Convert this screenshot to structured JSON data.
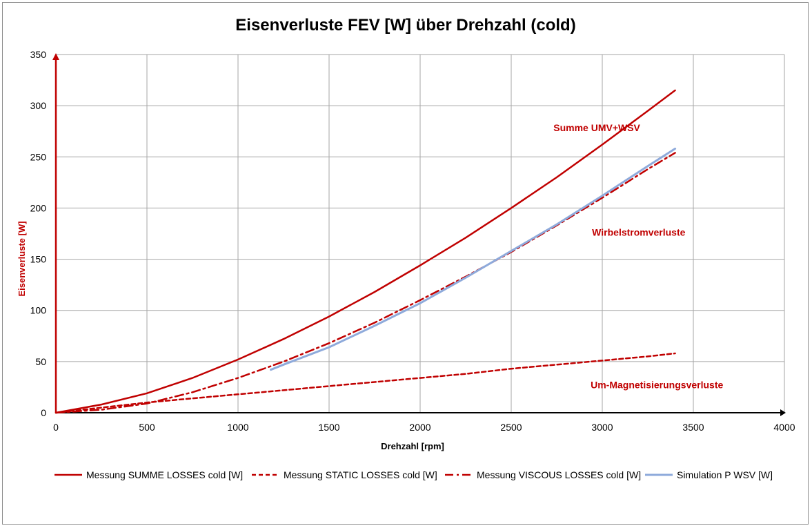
{
  "chart_data": {
    "type": "line",
    "title": "Eisenverluste FEV [W] über Drehzahl (cold)",
    "xlabel": "Drehzahl [rpm]",
    "ylabel": "Eisenverluste [W]",
    "xlim": [
      0,
      4000
    ],
    "ylim": [
      0,
      350
    ],
    "xticks": [
      0,
      500,
      1000,
      1500,
      2000,
      2500,
      3000,
      3500,
      4000
    ],
    "yticks": [
      0,
      50,
      100,
      150,
      200,
      250,
      300,
      350
    ],
    "grid": true,
    "legend_position": "bottom",
    "series": [
      {
        "name": "Messung SUMME LOSSES cold [W]",
        "style": "solid",
        "color": "#c00000",
        "x": [
          0,
          250,
          500,
          750,
          1000,
          1250,
          1500,
          1750,
          2000,
          2250,
          2500,
          2750,
          3000,
          3250,
          3400
        ],
        "y": [
          0,
          8,
          19,
          34,
          52,
          72,
          94,
          118,
          144,
          171,
          200,
          230,
          262,
          295,
          315
        ]
      },
      {
        "name": "Messung STATIC LOSSES cold [W]",
        "style": "dashed",
        "color": "#c00000",
        "x": [
          0,
          250,
          500,
          750,
          1000,
          1250,
          1500,
          1750,
          2000,
          2250,
          2500,
          2750,
          3000,
          3250,
          3400
        ],
        "y": [
          0,
          5,
          10,
          14,
          18,
          22,
          26,
          30,
          34,
          38,
          43,
          47,
          51,
          55,
          58
        ]
      },
      {
        "name": "Messung VISCOUS LOSSES cold [W]",
        "style": "dashdot",
        "color": "#c00000",
        "x": [
          0,
          250,
          500,
          750,
          1000,
          1250,
          1500,
          1750,
          2000,
          2250,
          2500,
          2750,
          3000,
          3250,
          3400
        ],
        "y": [
          0,
          3,
          9,
          20,
          34,
          50,
          68,
          88,
          110,
          133,
          157,
          183,
          210,
          238,
          254
        ]
      },
      {
        "name": "Simulation P WSV [W]",
        "style": "solid",
        "color": "#8eaadb",
        "x": [
          1180,
          1250,
          1500,
          1750,
          2000,
          2250,
          2500,
          2750,
          3000,
          3250,
          3400
        ],
        "y": [
          42,
          47,
          64,
          85,
          107,
          132,
          158,
          184,
          212,
          241,
          258
        ]
      }
    ],
    "annotations": [
      {
        "text": "Summe UMV+WSV",
        "x": 2970,
        "y": 275
      },
      {
        "text": "Wirbelstromverluste",
        "x": 3200,
        "y": 173
      },
      {
        "text": "Um-Magnetisierungsverluste",
        "x": 3300,
        "y": 24
      }
    ]
  },
  "colors": {
    "accent": "#c00000",
    "simulation": "#8eaadb",
    "grid": "#a6a6a6"
  }
}
